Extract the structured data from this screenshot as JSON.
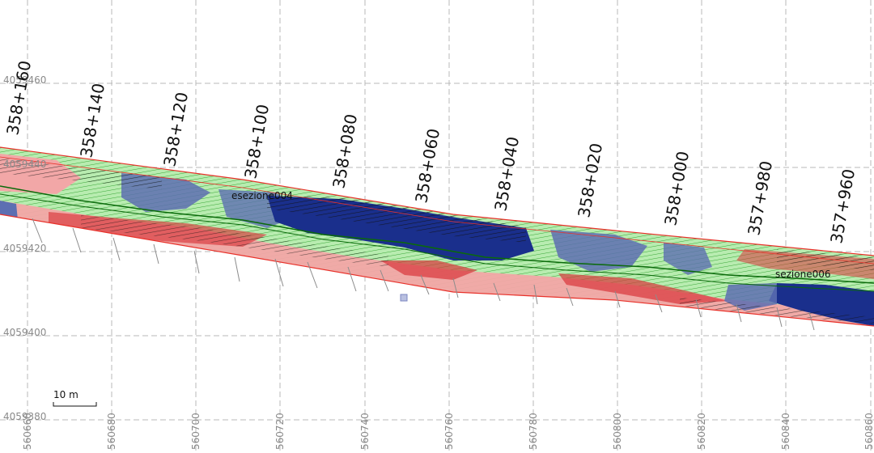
{
  "map": {
    "easting_ticks": [
      "560660",
      "560680",
      "560700",
      "560720",
      "560740",
      "560760",
      "560780",
      "560800",
      "560820",
      "560840",
      "560860"
    ],
    "northing_ticks": [
      "4059460",
      "4059440",
      "4059420",
      "4059400",
      "4059380"
    ],
    "stations": [
      "358+160",
      "358+140",
      "358+120",
      "358+100",
      "358+080",
      "358+060",
      "358+040",
      "358+020",
      "358+000",
      "357+980",
      "357+960"
    ],
    "section_labels": [
      "esezione004",
      "sezione006"
    ],
    "scale_bar": "10 m",
    "colors": {
      "boundary": "#e8312a",
      "deep_blue": "#1a2f8c",
      "mid_blue": "#5d6fb2",
      "light_green": "#b8ecb0",
      "green_hatch": "#1f9a1f",
      "pink": "#f2a7a7",
      "red": "#d9353a",
      "grid": "#b8b8b8"
    }
  }
}
